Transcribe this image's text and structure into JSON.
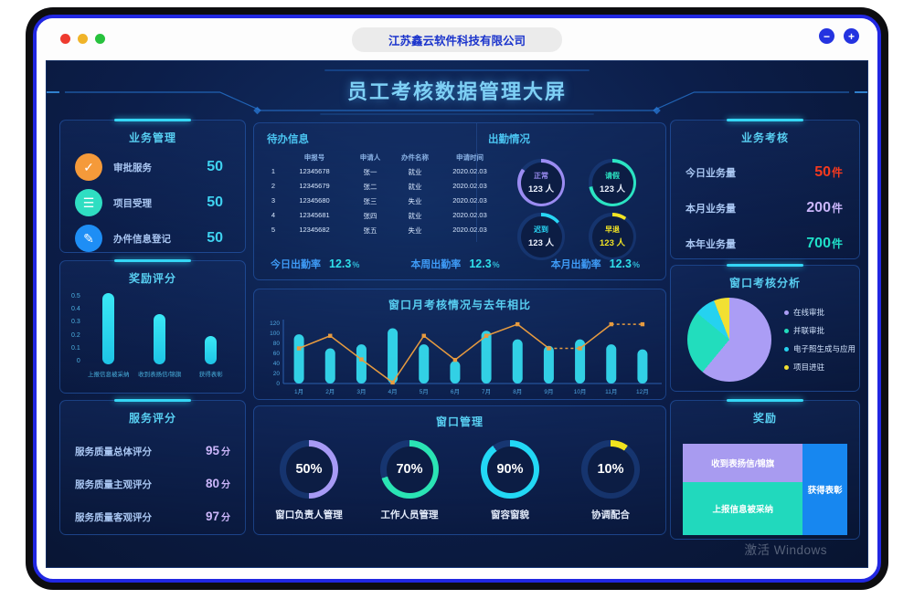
{
  "window": {
    "title": "江苏鑫云软件科技有限公司",
    "controls": {
      "minimize": "−",
      "zoom": "+"
    }
  },
  "dashboard": {
    "title": "员工考核数据管理大屏",
    "watermark": "激活 Windows"
  },
  "business": {
    "title": "业务管理",
    "items": [
      {
        "label": "审批服务",
        "value": "50",
        "icon": "clipboard-check-icon",
        "icon_glyph": "✓",
        "color": "#f59a3a"
      },
      {
        "label": "项目受理",
        "value": "50",
        "icon": "list-icon",
        "icon_glyph": "☰",
        "color": "#2fdec2"
      },
      {
        "label": "办件信息登记",
        "value": "50",
        "icon": "edit-icon",
        "icon_glyph": "✎",
        "color": "#1e8ef5"
      }
    ]
  },
  "service_score": {
    "title": "服务评分",
    "value_color": "#cbb6fa",
    "rows": [
      {
        "label": "服务质量总体评分",
        "value": "95",
        "unit": "分"
      },
      {
        "label": "服务质量主观评分",
        "value": "80",
        "unit": "分"
      },
      {
        "label": "服务质量客观评分",
        "value": "97",
        "unit": "分"
      }
    ]
  },
  "todo": {
    "title": "待办信息",
    "headers": [
      "申报号",
      "申请人",
      "办件名称",
      "申请时间"
    ],
    "rows": [
      [
        "1",
        "12345678",
        "张一",
        "就业",
        "2020.02.03"
      ],
      [
        "2",
        "12345679",
        "张二",
        "就业",
        "2020.02.03"
      ],
      [
        "3",
        "12345680",
        "张三",
        "失业",
        "2020.02.03"
      ],
      [
        "4",
        "12345681",
        "张四",
        "就业",
        "2020.02.03"
      ],
      [
        "5",
        "12345682",
        "张五",
        "失业",
        "2020.02.03"
      ]
    ]
  },
  "attendance_rates": [
    {
      "label": "今日出勤率",
      "value": "12.3",
      "unit": "%"
    },
    {
      "label": "本周出勤率",
      "value": "12.3",
      "unit": "%"
    },
    {
      "label": "本月出勤率",
      "value": "12.3",
      "unit": "%"
    }
  ],
  "business_assessment": {
    "title": "业务考核",
    "rows": [
      {
        "label": "今日业务量",
        "value": "50",
        "unit": "件",
        "color": "#f5391e"
      },
      {
        "label": "本月业务量",
        "value": "200",
        "unit": "件",
        "color": "#c9b5fa"
      },
      {
        "label": "本年业务量",
        "value": "700",
        "unit": "件",
        "color": "#1fe0c8"
      }
    ]
  },
  "chart_data": [
    {
      "id": "reward_score",
      "type": "bar",
      "title": "奖励评分",
      "categories": [
        "上报信息被采纳",
        "收到表扬信/锦旗",
        "获得表彰"
      ],
      "values": [
        0.5,
        0.35,
        0.2
      ],
      "ylim": [
        0,
        0.5
      ],
      "yticks": [
        "0.5",
        "0.4",
        "0.3",
        "0.2",
        "0.1",
        "0"
      ],
      "bar_color": "#31e2f0",
      "grid": false
    },
    {
      "id": "attendance",
      "type": "donut",
      "title": "出勤情况",
      "gauges": [
        {
          "label": "正常",
          "count": "123 人",
          "arc_pct": 85,
          "color": "#9b8cf2",
          "count_color": "#eef3ff"
        },
        {
          "label": "请假",
          "count": "123 人",
          "arc_pct": 72,
          "color": "#2be4c3",
          "count_color": "#eef3ff"
        },
        {
          "label": "迟到",
          "count": "123 人",
          "arc_pct": 14,
          "color": "#28d6f5",
          "count_color": "#eef3ff"
        },
        {
          "label": "早退",
          "count": "123 人",
          "arc_pct": 10,
          "color": "#f2e424",
          "count_color": "#f2e424"
        }
      ]
    },
    {
      "id": "monthly_compare",
      "type": "bar+line",
      "title": "窗口月考核情况与去年相比",
      "categories": [
        "1月",
        "2月",
        "3月",
        "4月",
        "5月",
        "6月",
        "7月",
        "8月",
        "9月",
        "10月",
        "11月",
        "12月"
      ],
      "series": [
        {
          "type": "bar",
          "color": "#35e0f2",
          "values": [
            98,
            70,
            78,
            110,
            78,
            45,
            105,
            88,
            75,
            88,
            78,
            68
          ]
        },
        {
          "type": "line",
          "color": "#e89b3f",
          "values": [
            70,
            95,
            48,
            2,
            95,
            47,
            95,
            118,
            70,
            70,
            118,
            118
          ],
          "dashed_segments": [
            8,
            10
          ]
        }
      ],
      "ylim": [
        0,
        120
      ],
      "yticks": [
        0,
        20,
        40,
        60,
        80,
        100,
        120
      ],
      "legend_position": "none"
    },
    {
      "id": "window_management",
      "type": "donut",
      "title": "窗口管理",
      "gauges": [
        {
          "label": "窗口负责人管理",
          "value": "50%",
          "arc_pct": 50,
          "color": "#a79af5"
        },
        {
          "label": "工作人员管理",
          "value": "70%",
          "arc_pct": 70,
          "color": "#2ae4b4"
        },
        {
          "label": "窗容窗貌",
          "value": "90%",
          "arc_pct": 90,
          "color": "#22d8f5"
        },
        {
          "label": "协调配合",
          "value": "10%",
          "arc_pct": 10,
          "color": "#f2e41e"
        }
      ]
    },
    {
      "id": "assessment_pie",
      "type": "pie",
      "title": "窗口考核分析",
      "slices": [
        {
          "label": "在线审批",
          "pct": 61,
          "color": "#ab9df5"
        },
        {
          "label": "并联审批",
          "pct": 25,
          "color": "#22ddbd"
        },
        {
          "label": "电子照生成与应用",
          "pct": 8,
          "color": "#25d2f0"
        },
        {
          "label": "项目进驻",
          "pct": 6,
          "color": "#f2e032"
        }
      ],
      "legend_position": "right"
    },
    {
      "id": "rewards",
      "type": "treemap",
      "title": "奖励",
      "blocks": [
        {
          "label": "收到表扬信/锦旗",
          "color": "#a89bf0",
          "area": "top-left"
        },
        {
          "label": "上报信息被采纳",
          "color": "#21d9bd",
          "area": "bottom-left"
        },
        {
          "label": "获得表彰",
          "color": "#1787f0",
          "area": "right"
        }
      ]
    }
  ]
}
